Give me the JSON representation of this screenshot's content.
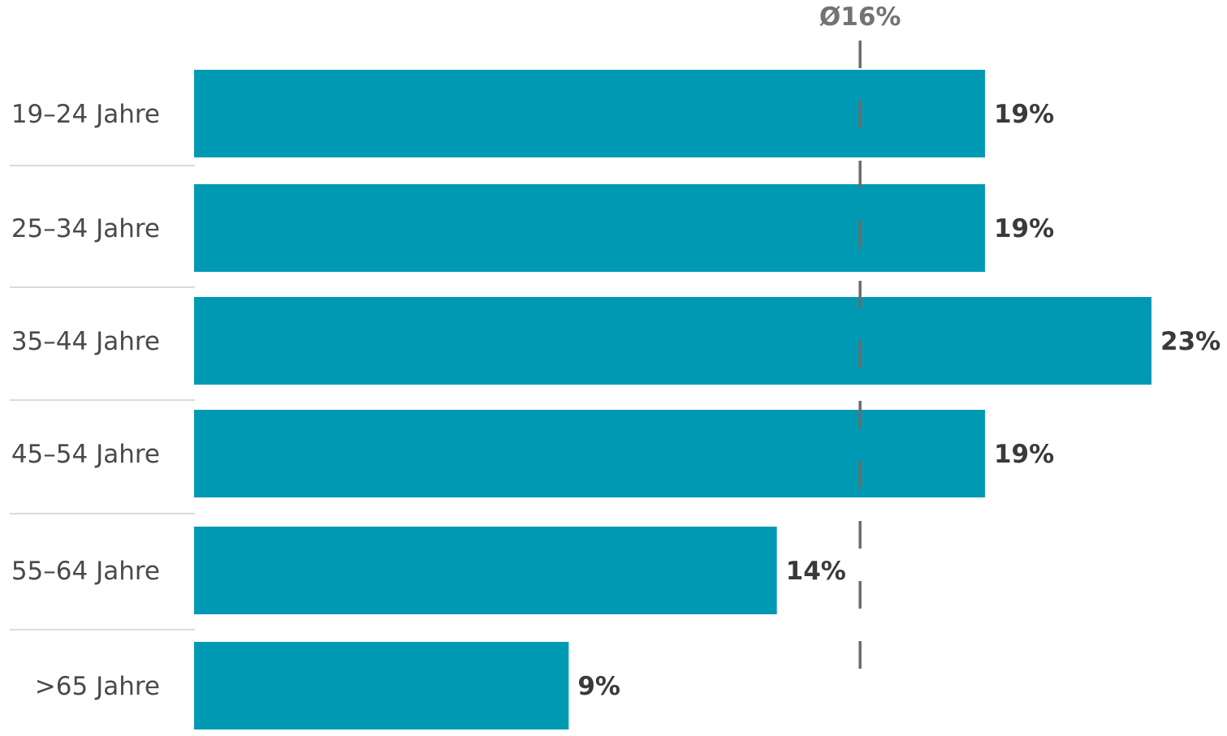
{
  "chart_data": {
    "type": "bar",
    "orientation": "horizontal",
    "categories": [
      "19–24 Jahre",
      "25–34 Jahre",
      "35–44 Jahre",
      "45–54 Jahre",
      "55–64 Jahre",
      ">65 Jahre"
    ],
    "values": [
      19,
      19,
      23,
      19,
      14,
      9
    ],
    "value_labels": [
      "19%",
      "19%",
      "23%",
      "19%",
      "14%",
      "9%"
    ],
    "reference_line": {
      "value": 16,
      "label": "Ø16%",
      "style": "dashed",
      "color": "#6b6b6b"
    },
    "title": "",
    "xlabel": "",
    "ylabel": "",
    "xlim": [
      0,
      23
    ],
    "grid": false,
    "legend": "none",
    "bar_color": "#0099b4"
  }
}
